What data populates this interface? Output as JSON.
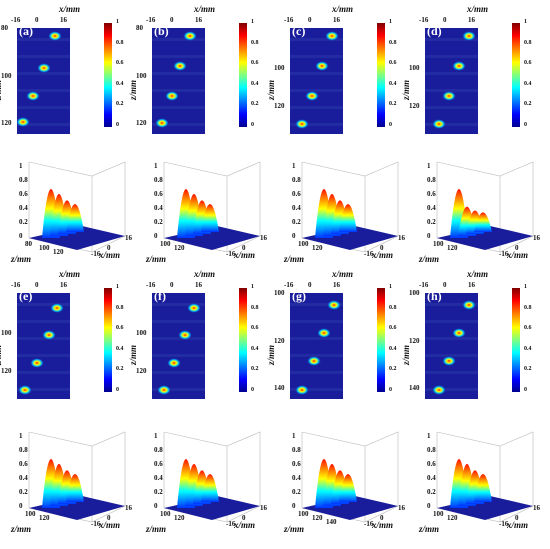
{
  "panels": [
    {
      "label": "(a)",
      "xticks": [
        "-16",
        "0",
        "16"
      ],
      "zticks": [
        "80",
        "100",
        "120"
      ],
      "cticks": [
        "1",
        "0.8",
        "0.6",
        "0.4",
        "0.2",
        "0"
      ],
      "xlabel": "x/mm",
      "zlabel": "z/mm"
    },
    {
      "label": "(b)",
      "xticks": [
        "-16",
        "0",
        "16"
      ],
      "zticks": [
        "80",
        "100",
        "120"
      ],
      "cticks": [
        "1",
        "0.8",
        "0.6",
        "0.4",
        "0.2",
        "0"
      ],
      "xlabel": "x/mm",
      "zlabel": "z/mm"
    },
    {
      "label": "(c)",
      "xticks": [
        "-16",
        "0",
        "16"
      ],
      "zticks": [
        "100",
        "120"
      ],
      "cticks": [
        "1",
        "0.8",
        "0.6",
        "0.4",
        "0.2",
        "0"
      ],
      "xlabel": "x/mm",
      "zlabel": "z/mm"
    },
    {
      "label": "(d)",
      "xticks": [
        "-16",
        "0",
        "16"
      ],
      "zticks": [
        "100",
        "120"
      ],
      "cticks": [
        "1",
        "0.8",
        "0.6",
        "0.4",
        "0.2",
        "0"
      ],
      "xlabel": "x/mm",
      "zlabel": "z/mm"
    },
    {
      "label": "(e)",
      "xticks": [
        "-16",
        "0",
        "16"
      ],
      "zticks": [
        "100",
        "120"
      ],
      "cticks": [
        "1",
        "0.8",
        "0.6",
        "0.4",
        "0.2",
        "0"
      ],
      "xlabel": "x/mm",
      "zlabel": "z/mm"
    },
    {
      "label": "(f)",
      "xticks": [
        "-16",
        "0",
        "16"
      ],
      "zticks": [
        "100",
        "120"
      ],
      "cticks": [
        "1",
        "0.8",
        "0.6",
        "0.4",
        "0.2",
        "0"
      ],
      "xlabel": "x/mm",
      "zlabel": "z/mm"
    },
    {
      "label": "(g)",
      "xticks": [
        "-16",
        "0",
        "16"
      ],
      "zticks": [
        "100",
        "120",
        "140"
      ],
      "cticks": [
        "1",
        "0.8",
        "0.6",
        "0.4",
        "0.2",
        "0"
      ],
      "xlabel": "x/mm",
      "zlabel": "z/mm"
    },
    {
      "label": "(h)",
      "xticks": [
        "-16",
        "0",
        "16"
      ],
      "zticks": [
        "100",
        "120",
        "140"
      ],
      "cticks": [
        "1",
        "0.8",
        "0.6",
        "0.4",
        "0.2",
        "0"
      ],
      "xlabel": "x/mm",
      "zlabel": "z/mm"
    }
  ],
  "surfaces": [
    {
      "zticks": [
        "1",
        "0.8",
        "0.6",
        "0.4",
        "0.2",
        "0"
      ],
      "ylabel": "z/mm",
      "xlabel": "x/mm",
      "yticks": [
        "80",
        "100",
        "120"
      ],
      "xticks": [
        "-16",
        "0",
        "16"
      ]
    },
    {
      "zticks": [
        "1",
        "0.8",
        "0.6",
        "0.4",
        "0.2",
        "0"
      ],
      "ylabel": "z/mm",
      "xlabel": "x/mm",
      "yticks": [
        "100",
        "120"
      ],
      "xticks": [
        "-16",
        "0",
        "16"
      ]
    },
    {
      "zticks": [
        "1",
        "0.8",
        "0.6",
        "0.4",
        "0.2",
        "0"
      ],
      "ylabel": "z/mm",
      "xlabel": "x/mm",
      "yticks": [
        "100",
        "120"
      ],
      "xticks": [
        "-16",
        "0",
        "16"
      ]
    },
    {
      "zticks": [
        "1",
        "0.8",
        "0.6",
        "0.4",
        "0.2",
        "0"
      ],
      "ylabel": "z/mm",
      "xlabel": "x/mm",
      "yticks": [
        "100",
        "120"
      ],
      "xticks": [
        "-16",
        "0",
        "16"
      ]
    },
    {
      "zticks": [
        "1",
        "0.8",
        "0.6",
        "0.4",
        "0.2",
        "0"
      ],
      "ylabel": "z/mm",
      "xlabel": "x/mm",
      "yticks": [
        "100",
        "120"
      ],
      "xticks": [
        "-16",
        "0",
        "16"
      ]
    },
    {
      "zticks": [
        "1",
        "0.8",
        "0.6",
        "0.4",
        "0.2",
        "0"
      ],
      "ylabel": "z/mm",
      "xlabel": "x/mm",
      "yticks": [
        "100",
        "120"
      ],
      "xticks": [
        "-16",
        "0",
        "16"
      ]
    },
    {
      "zticks": [
        "1",
        "0.8",
        "0.6",
        "0.4",
        "0.2",
        "0"
      ],
      "ylabel": "z/mm",
      "xlabel": "x/mm",
      "yticks": [
        "100",
        "120",
        "140"
      ],
      "xticks": [
        "-16",
        "0",
        "16"
      ]
    },
    {
      "zticks": [
        "1",
        "0.8",
        "0.6",
        "0.4",
        "0.2",
        "0"
      ],
      "ylabel": "z/mm",
      "xlabel": "x/mm",
      "yticks": [
        "100",
        "120"
      ],
      "xticks": [
        "-16",
        "0",
        "16"
      ]
    }
  ],
  "colors": {
    "background": "#1a1d9b",
    "peak": "#ff2000",
    "mid": "#ffff00",
    "low": "#00c8ff"
  }
}
